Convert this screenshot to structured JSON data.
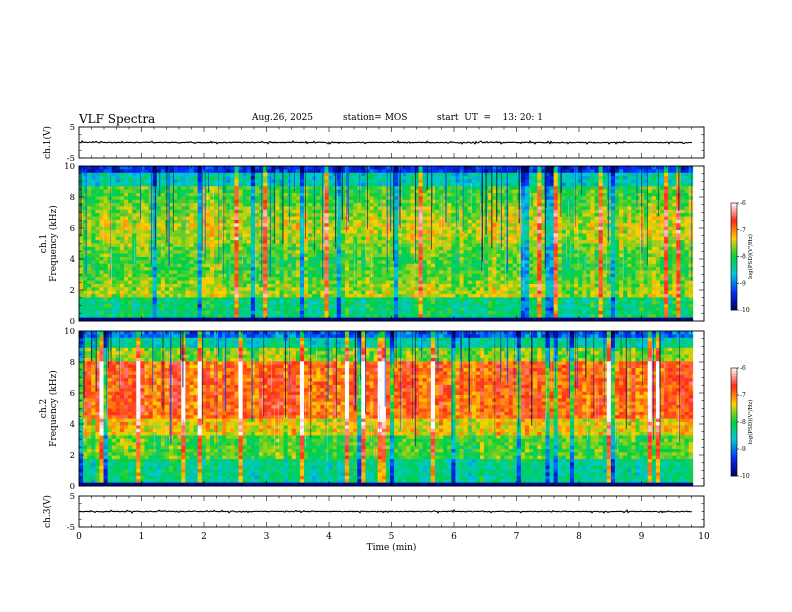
{
  "header": {
    "title": "VLF Spectra",
    "date": "Aug.26, 2025",
    "station": "station= MOS",
    "start": "start  UT  =    13: 20: 1"
  },
  "colors": {
    "ramp": [
      "#ffffff",
      "#ff2a1a",
      "#ffd000",
      "#00d040",
      "#00c8d8",
      "#0030ff",
      "#000060"
    ]
  },
  "chart_data": [
    {
      "type": "line",
      "name": "ch1-waveform",
      "ylabel": "ch.1(V)",
      "ylim": [
        -5,
        5
      ],
      "yticks": [
        "5",
        "-5"
      ],
      "level": 0,
      "xlim": [
        0,
        10
      ]
    },
    {
      "type": "heatmap",
      "name": "ch1-spectrogram",
      "ylabel": "ch.1\nFrequency (kHz)",
      "ylim": [
        0,
        10
      ],
      "yticks": [
        "0",
        "2",
        "4",
        "6",
        "8",
        "10"
      ],
      "xlim": [
        0,
        9.82
      ],
      "profile": "broadband",
      "colorbar": {
        "label": "log(PSD)(V²/Hz)",
        "range": [
          -10,
          -6
        ],
        "ticks": [
          "-6",
          "-7",
          "-8",
          "-9",
          "-10"
        ]
      }
    },
    {
      "type": "heatmap",
      "name": "ch2-spectrogram",
      "ylabel": "ch.2\nFrequency (kHz)",
      "ylim": [
        0,
        10
      ],
      "yticks": [
        "0",
        "2",
        "4",
        "6",
        "8",
        "10"
      ],
      "xlim": [
        0,
        9.82
      ],
      "profile": "midband",
      "colorbar": {
        "label": "log(PSD)(V²/Hz)",
        "range": [
          -10,
          -6
        ],
        "ticks": [
          "-6",
          "-7",
          "-8",
          "-9",
          "-10"
        ]
      }
    },
    {
      "type": "line",
      "name": "ch3-waveform",
      "ylabel": "ch.3(V)",
      "ylim": [
        -5,
        5
      ],
      "yticks": [
        "5",
        "-5"
      ],
      "level": 0,
      "xlim": [
        0,
        10
      ]
    }
  ],
  "xaxis": {
    "label": "Time  (min)",
    "range": [
      0,
      10
    ],
    "ticks": [
      "0",
      "1",
      "2",
      "3",
      "4",
      "5",
      "6",
      "7",
      "8",
      "9",
      "10"
    ]
  }
}
